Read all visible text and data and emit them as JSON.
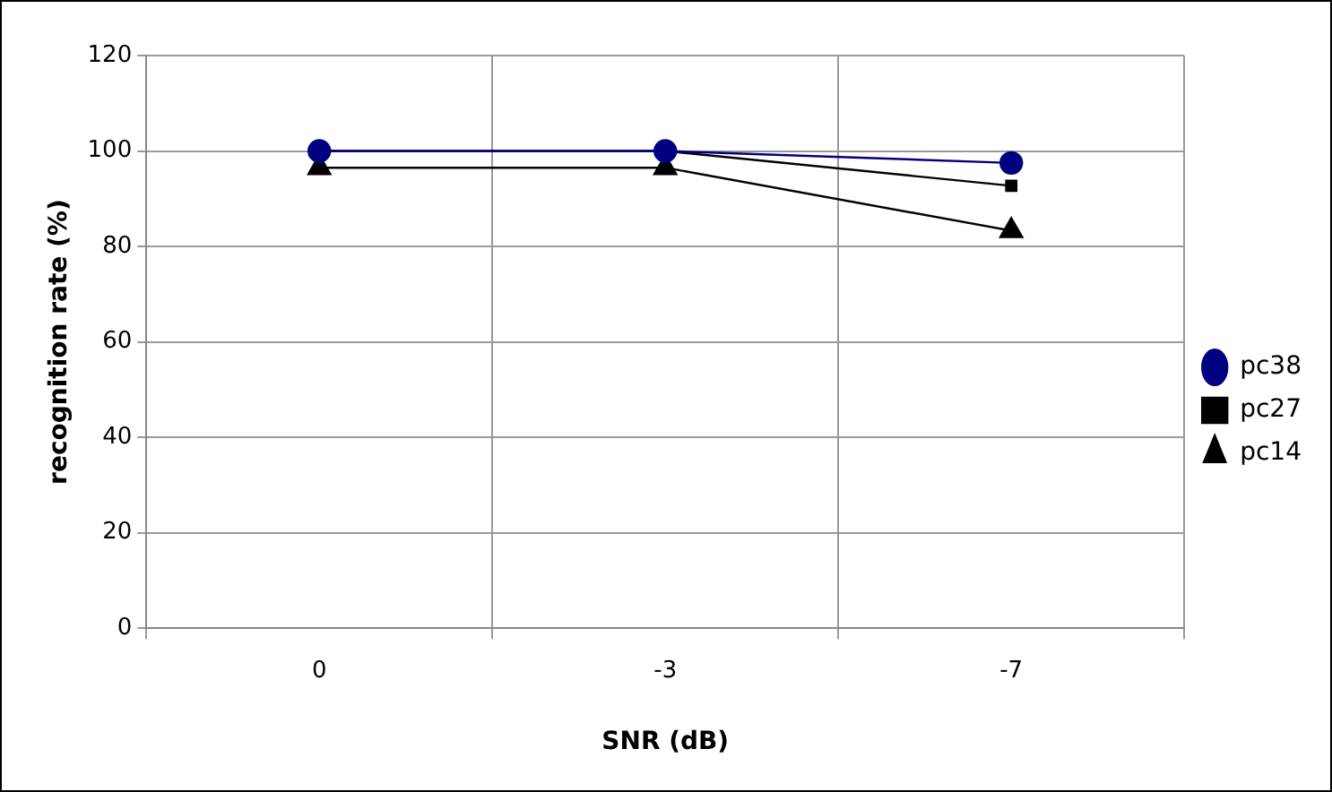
{
  "chart_data": {
    "type": "line",
    "xlabel": "SNR (dB)",
    "ylabel": "recognition rate (%)",
    "categories": [
      "0",
      "-3",
      "-7"
    ],
    "series": [
      {
        "name": "pc38",
        "color": "#000080",
        "marker": "circle",
        "values": [
          100,
          100,
          97.5
        ]
      },
      {
        "name": "pc27",
        "color": "#000000",
        "marker": "square",
        "values": [
          100,
          100,
          92.7
        ]
      },
      {
        "name": "pc14",
        "color": "#000000",
        "marker": "triangle",
        "values": [
          96.5,
          96.5,
          83.3
        ]
      }
    ],
    "ylim": [
      0,
      120
    ],
    "yticks": [
      0,
      20,
      40,
      60,
      80,
      100,
      120
    ],
    "grid": true,
    "legend": "right"
  }
}
